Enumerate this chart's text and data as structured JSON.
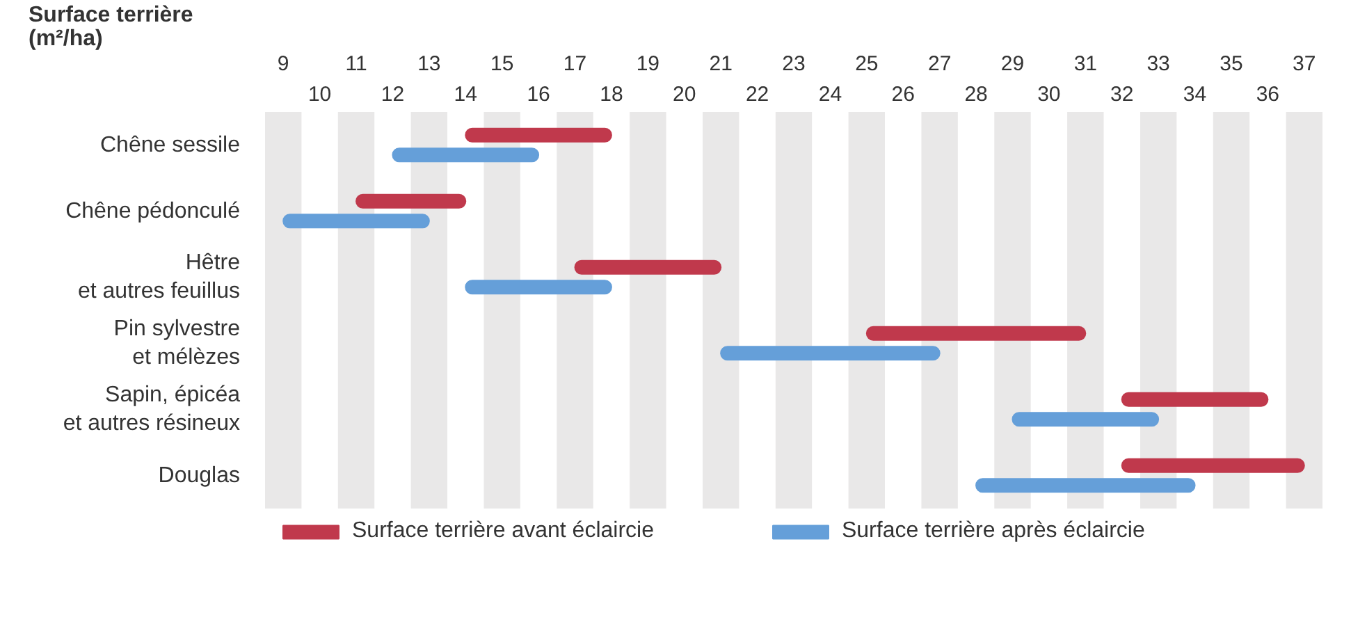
{
  "chart_data": {
    "type": "bar",
    "orientation": "horizontal",
    "xlabel": "Surface terrière\n(m²/ha)",
    "categories": [
      "Chêne sessile",
      "Chêne pédonculé",
      "Hêtre\net autres feuillus",
      "Pin sylvestre\net mélèzes",
      "Sapin, épicéa\net autres résineux",
      "Douglas"
    ],
    "series": [
      {
        "name": "Surface terrière avant éclaircie",
        "color": "#c0394c",
        "base": [
          14,
          11,
          17,
          25,
          32,
          32
        ],
        "values": [
          4,
          3,
          4,
          6,
          4,
          5
        ]
      },
      {
        "name": "Surface terrière après éclaircie",
        "color": "#659fd9",
        "base": [
          12,
          9,
          14,
          21,
          29,
          28
        ],
        "values": [
          4,
          4,
          4,
          6,
          4,
          6
        ]
      }
    ],
    "xlim": [
      8.5,
      37.5
    ],
    "xticks": [
      9,
      11,
      13,
      15,
      17,
      19,
      21,
      23,
      25,
      27,
      29,
      31,
      33,
      35,
      37
    ],
    "x2lim": [
      8.5,
      37.5
    ],
    "x2ticks": [
      10,
      12,
      14,
      16,
      18,
      20,
      22,
      24,
      26,
      28,
      30,
      32,
      34,
      36
    ],
    "bands": [
      {
        "axis": "x",
        "from": 8.5,
        "to": 9.5,
        "color": "#e9e8e8"
      },
      {
        "axis": "x",
        "from": 10.5,
        "to": 11.5,
        "color": "#e9e8e8"
      },
      {
        "axis": "x",
        "from": 12.5,
        "to": 13.5,
        "color": "#e9e8e8"
      },
      {
        "axis": "x",
        "from": 14.5,
        "to": 15.5,
        "color": "#e9e8e8"
      },
      {
        "axis": "x",
        "from": 16.5,
        "to": 17.5,
        "color": "#e9e8e8"
      },
      {
        "axis": "x",
        "from": 18.5,
        "to": 19.5,
        "color": "#e9e8e8"
      },
      {
        "axis": "x",
        "from": 20.5,
        "to": 21.5,
        "color": "#e9e8e8"
      },
      {
        "axis": "x",
        "from": 22.5,
        "to": 23.5,
        "color": "#e9e8e8"
      },
      {
        "axis": "x",
        "from": 24.5,
        "to": 25.5,
        "color": "#e9e8e8"
      },
      {
        "axis": "x",
        "from": 26.5,
        "to": 27.5,
        "color": "#e9e8e8"
      },
      {
        "axis": "x",
        "from": 28.5,
        "to": 29.5,
        "color": "#e9e8e8"
      },
      {
        "axis": "x",
        "from": 30.5,
        "to": 31.5,
        "color": "#e9e8e8"
      },
      {
        "axis": "x",
        "from": 32.5,
        "to": 33.5,
        "color": "#e9e8e8"
      },
      {
        "axis": "x",
        "from": 34.5,
        "to": 35.5,
        "color": "#e9e8e8"
      },
      {
        "axis": "x",
        "from": 36.5,
        "to": 37.5,
        "color": "#e9e8e8"
      }
    ],
    "legend": "bottom"
  }
}
